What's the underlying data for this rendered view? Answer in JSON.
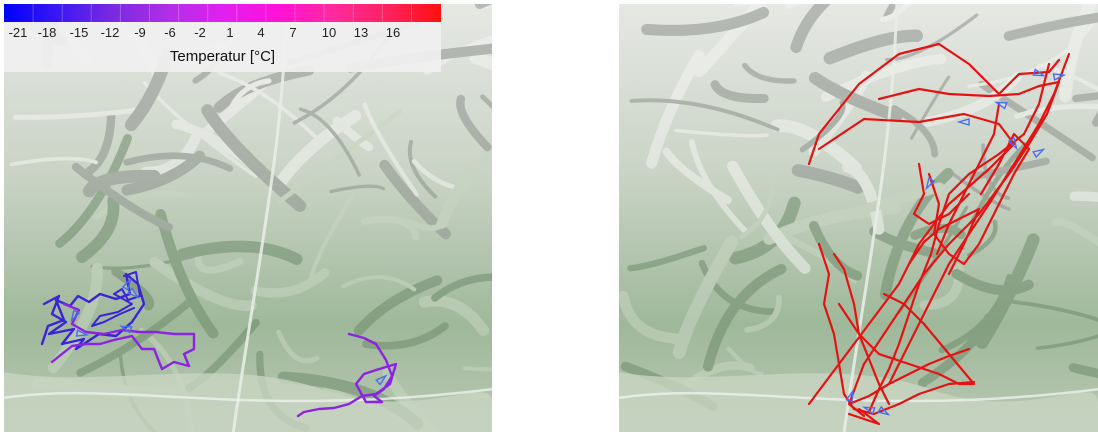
{
  "legend": {
    "title": "Temperatur [°C]",
    "ticks": [
      "-21",
      "-18",
      "-15",
      "-12",
      "-9",
      "-6",
      "-2",
      "1",
      "4",
      "7",
      "10",
      "13",
      "16"
    ],
    "gradient_colors": [
      "#0000ff",
      "#3c18f2",
      "#7a2ae0",
      "#b02ee8",
      "#e020f0",
      "#ff10d8",
      "#ff2aa0",
      "#ff2260",
      "#ff1010"
    ]
  },
  "colors": {
    "terrain_base": "#9fb89a",
    "terrain_dark": "#6f8c6c",
    "terrain_light": "#d9dcd6",
    "track_cold_blue": "#3b24d6",
    "track_cold_violet": "#8a24e0",
    "track_warm_red": "#e41313",
    "marker_arrow": "#4a6ef0"
  },
  "maps": [
    {
      "name": "cold-tracks-map",
      "track_color_key": "track_cold_blue"
    },
    {
      "name": "warm-tracks-map",
      "track_color_key": "track_warm_red"
    }
  ]
}
